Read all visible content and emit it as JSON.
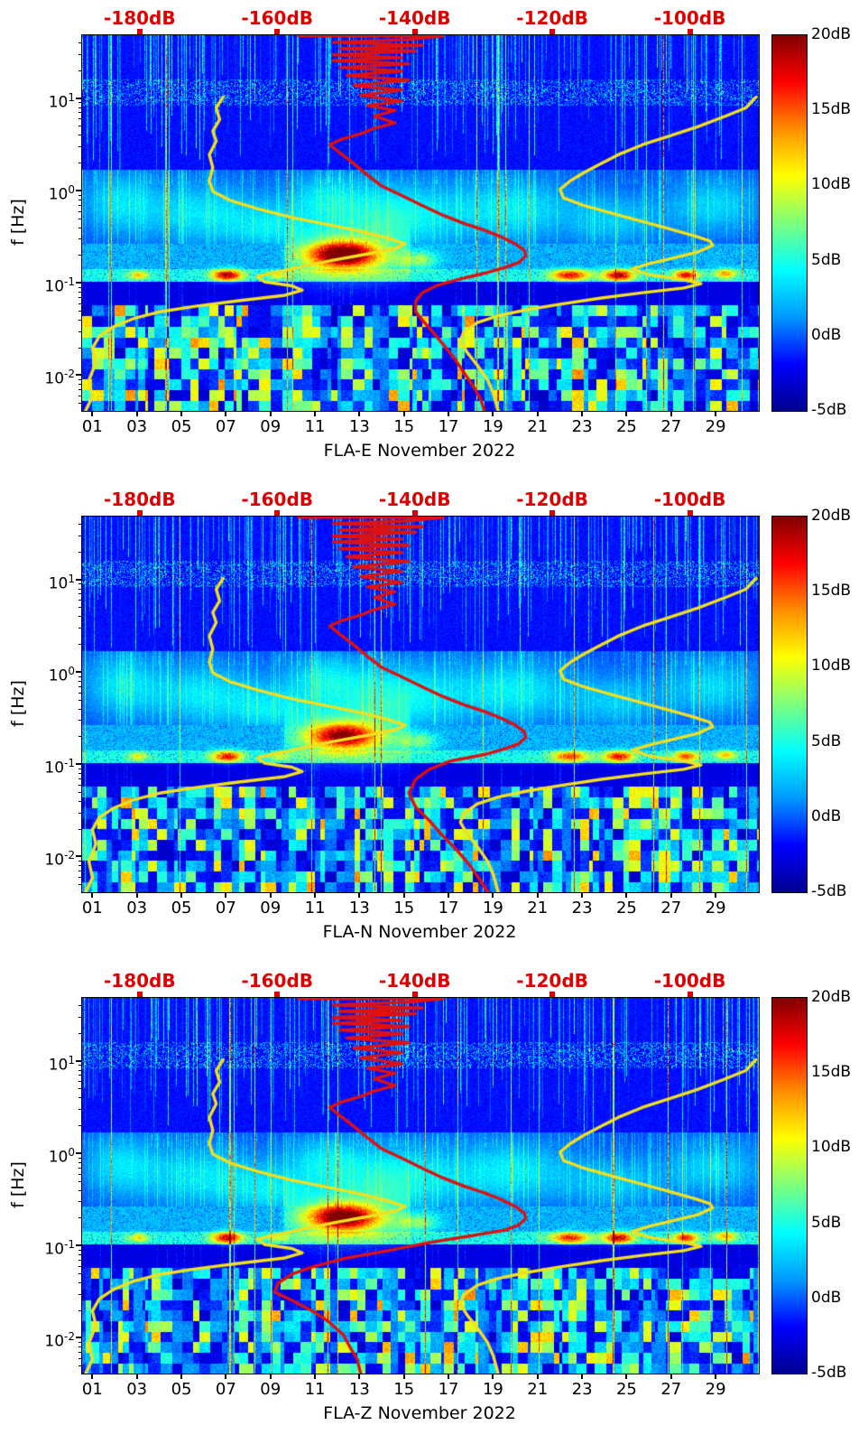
{
  "panels": [
    {
      "id": "FLA-E",
      "title": "FLA-E November 2022"
    },
    {
      "id": "FLA-N",
      "title": "FLA-N November 2022"
    },
    {
      "id": "FLA-Z",
      "title": "FLA-Z November 2022"
    }
  ],
  "axes": {
    "y_label": "f [Hz]",
    "y_ticks": [
      {
        "base": "10",
        "exp": "1"
      },
      {
        "base": "10",
        "exp": "0"
      },
      {
        "base": "10",
        "exp": "-1"
      },
      {
        "base": "10",
        "exp": "-2"
      }
    ],
    "x_ticks": [
      "01",
      "03",
      "05",
      "07",
      "09",
      "11",
      "13",
      "15",
      "17",
      "19",
      "21",
      "23",
      "25",
      "27",
      "29"
    ],
    "top_ticks": [
      "-180dB",
      "-160dB",
      "-140dB",
      "-120dB",
      "-100dB"
    ],
    "colorbar_ticks": [
      "20dB",
      "15dB",
      "10dB",
      "5dB",
      "0dB",
      "-5dB"
    ]
  },
  "colors": {
    "top_axis_red": "#dd0000",
    "curve_red": "#dd1111",
    "curve_yellow": "#f2df1f",
    "colormap": "jet"
  },
  "chart_data": {
    "type": "heatmap",
    "subtype": "spectrogram",
    "description": "Three stacked log-frequency spectrograms (relative PSD in dB, jet colormap) for magnetometer components FLA-E, FLA-N, FLA-Z during November 2022. A red observed-PSD curve and two yellow reference noise-model curves are overlaid, plotted against the red dB axis along the top.",
    "panels": [
      "FLA-E November 2022",
      "FLA-N November 2022",
      "FLA-Z November 2022"
    ],
    "x_axis": {
      "label": "day of November 2022",
      "tick_days": [
        1,
        3,
        5,
        7,
        9,
        11,
        13,
        15,
        17,
        19,
        21,
        23,
        25,
        27,
        29
      ],
      "span_days": 30.4
    },
    "y_axis": {
      "label": "f [Hz]",
      "scale": "log",
      "range_hz": [
        0.0042,
        49
      ],
      "tick_values_hz": [
        10,
        1,
        0.1,
        0.01
      ]
    },
    "color_axis": {
      "range_db": [
        -5,
        20
      ],
      "tick_values_db": [
        20,
        15,
        10,
        5,
        0,
        -5
      ],
      "colormap": "jet"
    },
    "top_axis": {
      "range_db": [
        -188.5,
        -90.1
      ],
      "tick_values_db": [
        -180,
        -160,
        -140,
        -120,
        -100
      ]
    },
    "overlay_curves": {
      "red_psd_head_f_db": [
        [
          48,
          -157
        ],
        [
          48,
          -136
        ],
        [
          44,
          -141
        ],
        [
          41,
          -152
        ],
        [
          38,
          -139
        ],
        [
          35,
          -151
        ],
        [
          33,
          -140
        ],
        [
          30,
          -152
        ],
        [
          28,
          -142
        ],
        [
          26,
          -152
        ],
        [
          24,
          -141
        ],
        [
          22,
          -151
        ],
        [
          20,
          -142
        ],
        [
          18,
          -150
        ],
        [
          16,
          -141
        ],
        [
          14,
          -149
        ],
        [
          12.5,
          -142
        ],
        [
          11,
          -148
        ],
        [
          9.5,
          -142
        ],
        [
          8.5,
          -147
        ],
        [
          7.5,
          -143
        ],
        [
          6.5,
          -146
        ],
        [
          5.5,
          -143
        ],
        [
          4.8,
          -146
        ],
        [
          4.2,
          -148
        ],
        [
          3.6,
          -151
        ],
        [
          3.2,
          -152.5
        ],
        [
          2.6,
          -151
        ],
        [
          2.0,
          -149
        ],
        [
          1.5,
          -147
        ],
        [
          1.15,
          -145
        ],
        [
          0.9,
          -142
        ],
        [
          0.7,
          -139
        ],
        [
          0.55,
          -136
        ],
        [
          0.45,
          -133
        ],
        [
          0.38,
          -130
        ],
        [
          0.32,
          -127.5
        ],
        [
          0.27,
          -125.5
        ],
        [
          0.23,
          -124.2
        ],
        [
          0.2,
          -124
        ],
        [
          0.17,
          -125
        ],
        [
          0.15,
          -127
        ]
      ],
      "red_psd_tail_f_db": [
        [
          [
            0.13,
            -130
          ],
          [
            0.11,
            -134
          ],
          [
            0.095,
            -137
          ],
          [
            0.08,
            -139
          ],
          [
            0.065,
            -140
          ],
          [
            0.05,
            -140
          ],
          [
            0.04,
            -139
          ],
          [
            0.03,
            -137.5
          ],
          [
            0.022,
            -136
          ],
          [
            0.016,
            -134.5
          ],
          [
            0.011,
            -133
          ],
          [
            0.0075,
            -131.5
          ],
          [
            0.0055,
            -130.5
          ],
          [
            0.0042,
            -130
          ]
        ],
        [
          [
            0.13,
            -130
          ],
          [
            0.11,
            -135
          ],
          [
            0.09,
            -138
          ],
          [
            0.07,
            -140
          ],
          [
            0.05,
            -141
          ],
          [
            0.035,
            -140
          ],
          [
            0.025,
            -138
          ],
          [
            0.017,
            -136
          ],
          [
            0.012,
            -134
          ],
          [
            0.008,
            -132
          ],
          [
            0.0055,
            -130.5
          ],
          [
            0.0042,
            -129.5
          ]
        ],
        [
          [
            0.13,
            -132
          ],
          [
            0.11,
            -138
          ],
          [
            0.09,
            -144
          ],
          [
            0.075,
            -150
          ],
          [
            0.06,
            -155
          ],
          [
            0.05,
            -158
          ],
          [
            0.04,
            -160
          ],
          [
            0.032,
            -160.5
          ],
          [
            0.026,
            -158
          ],
          [
            0.02,
            -155
          ],
          [
            0.015,
            -152.5
          ],
          [
            0.011,
            -150.5
          ],
          [
            0.008,
            -149.5
          ],
          [
            0.006,
            -148.5
          ],
          [
            0.0042,
            -148
          ]
        ]
      ],
      "yellow_low_f_db": [
        [
          10.5,
          -168
        ],
        [
          8,
          -169
        ],
        [
          6,
          -168.5
        ],
        [
          4.5,
          -169.5
        ],
        [
          3.5,
          -169
        ],
        [
          2.5,
          -170
        ],
        [
          1.8,
          -169.5
        ],
        [
          1.3,
          -170
        ],
        [
          1.0,
          -169.5
        ],
        [
          0.8,
          -167
        ],
        [
          0.65,
          -163
        ],
        [
          0.52,
          -158
        ],
        [
          0.44,
          -153
        ],
        [
          0.37,
          -148
        ],
        [
          0.31,
          -144
        ],
        [
          0.27,
          -141.5
        ],
        [
          0.24,
          -143
        ],
        [
          0.21,
          -147
        ],
        [
          0.18,
          -152
        ],
        [
          0.155,
          -156
        ],
        [
          0.135,
          -160
        ],
        [
          0.12,
          -163
        ],
        [
          0.105,
          -162
        ],
        [
          0.095,
          -158
        ],
        [
          0.085,
          -156.5
        ],
        [
          0.075,
          -159
        ],
        [
          0.065,
          -166
        ],
        [
          0.057,
          -172
        ],
        [
          0.05,
          -177
        ],
        [
          0.042,
          -181
        ],
        [
          0.034,
          -184
        ],
        [
          0.027,
          -186
        ],
        [
          0.02,
          -187
        ],
        [
          0.014,
          -186.5
        ],
        [
          0.009,
          -187.5
        ],
        [
          0.006,
          -187
        ],
        [
          0.0042,
          -188
        ]
      ],
      "yellow_high_f_db": [
        [
          10.5,
          -90.5
        ],
        [
          8,
          -92
        ],
        [
          6.5,
          -95
        ],
        [
          5,
          -99
        ],
        [
          4,
          -103
        ],
        [
          3.2,
          -107
        ],
        [
          2.5,
          -110.5
        ],
        [
          2,
          -113
        ],
        [
          1.6,
          -115.5
        ],
        [
          1.3,
          -117.5
        ],
        [
          1.05,
          -119
        ],
        [
          0.85,
          -118.5
        ],
        [
          0.7,
          -115.5
        ],
        [
          0.58,
          -111.5
        ],
        [
          0.47,
          -107
        ],
        [
          0.39,
          -103
        ],
        [
          0.33,
          -99.5
        ],
        [
          0.29,
          -97.2
        ],
        [
          0.26,
          -96.8
        ],
        [
          0.22,
          -99
        ],
        [
          0.19,
          -102.5
        ],
        [
          0.165,
          -106
        ],
        [
          0.145,
          -108.5
        ],
        [
          0.125,
          -106
        ],
        [
          0.11,
          -101
        ],
        [
          0.1,
          -98.5
        ],
        [
          0.09,
          -101
        ],
        [
          0.08,
          -107
        ],
        [
          0.07,
          -113
        ],
        [
          0.06,
          -119
        ],
        [
          0.052,
          -124
        ],
        [
          0.045,
          -128
        ],
        [
          0.038,
          -131
        ],
        [
          0.03,
          -133
        ],
        [
          0.024,
          -133.5
        ],
        [
          0.018,
          -132.5
        ],
        [
          0.013,
          -131
        ],
        [
          0.009,
          -129.5
        ],
        [
          0.0065,
          -128.7
        ],
        [
          0.0042,
          -128
        ]
      ]
    },
    "hotspots": [
      {
        "day": 12.2,
        "freq_hz": 0.21,
        "amp_db": 16,
        "sx": 26,
        "sy": 10
      },
      {
        "day": 12.4,
        "freq_hz": 0.2,
        "amp_db": 5,
        "sx": 60,
        "sy": 22
      },
      {
        "day": 15.6,
        "freq_hz": 0.185,
        "amp_db": 6,
        "sx": 14,
        "sy": 7
      },
      {
        "day": 7.0,
        "freq_hz": 0.125,
        "amp_db": 14,
        "sx": 12,
        "sy": 4.5
      },
      {
        "day": 22.4,
        "freq_hz": 0.125,
        "amp_db": 12,
        "sx": 15,
        "sy": 4.5
      },
      {
        "day": 24.6,
        "freq_hz": 0.125,
        "amp_db": 14,
        "sx": 12,
        "sy": 4.5
      },
      {
        "day": 27.6,
        "freq_hz": 0.125,
        "amp_db": 12,
        "sx": 10,
        "sy": 4
      },
      {
        "day": 29.4,
        "freq_hz": 0.13,
        "amp_db": 8,
        "sx": 9,
        "sy": 4
      },
      {
        "day": 3.0,
        "freq_hz": 0.125,
        "amp_db": 7,
        "sx": 8,
        "sy": 3.5
      },
      {
        "day": 9.3,
        "freq_hz": 0.125,
        "amp_db": 6,
        "sx": 7,
        "sy": 3.5
      }
    ]
  }
}
